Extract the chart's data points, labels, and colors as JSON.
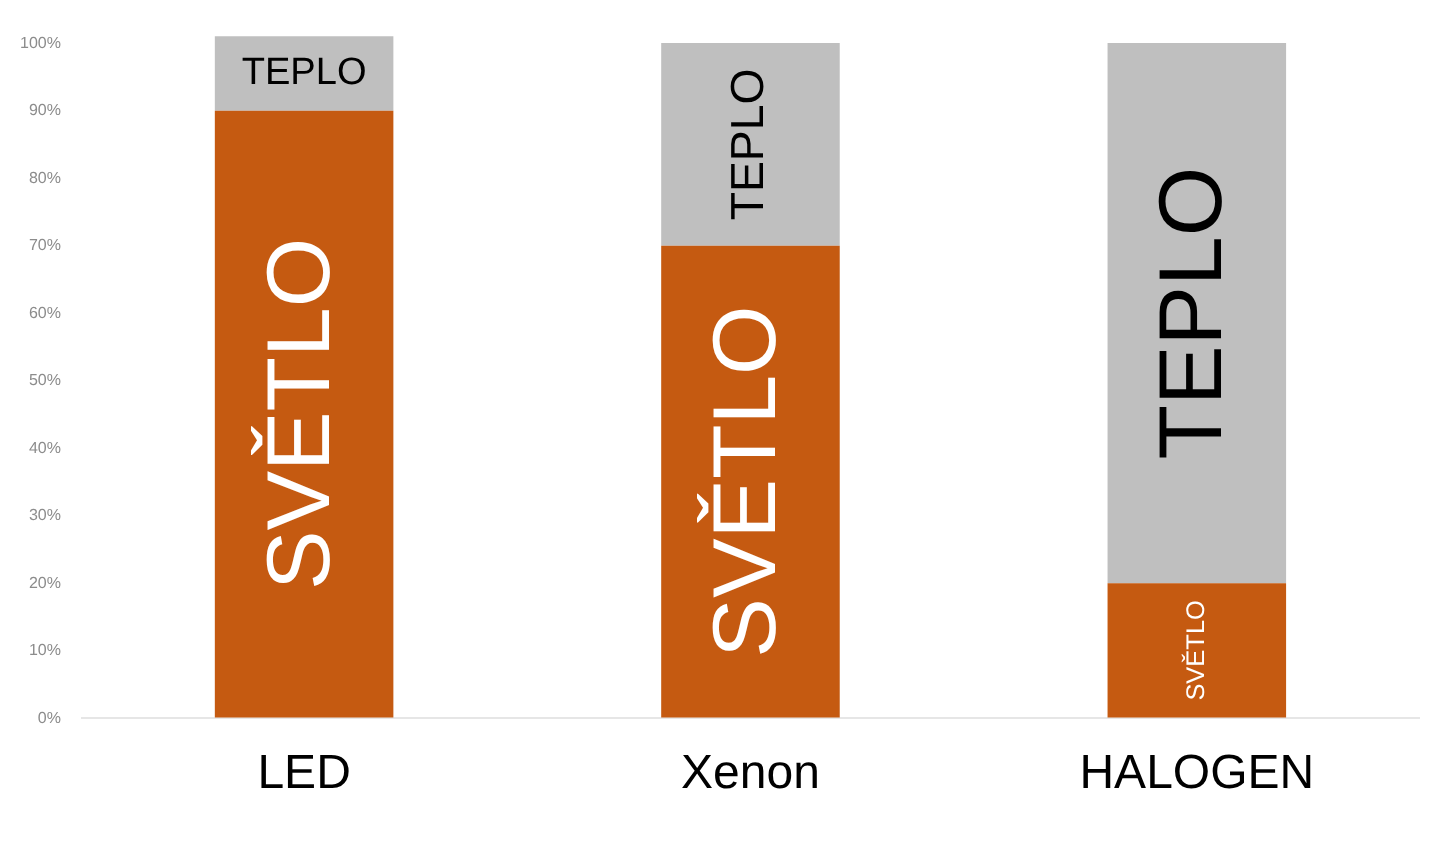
{
  "chart_data": {
    "type": "bar",
    "stacked": true,
    "categories": [
      "LED",
      "Xenon",
      "HALOGEN"
    ],
    "series": [
      {
        "name": "SVĚTLO",
        "color": "#c55a11",
        "values": [
          90,
          70,
          20
        ]
      },
      {
        "name": "TEPLO",
        "color": "#bfbfbf",
        "values": [
          11,
          30,
          80
        ]
      }
    ],
    "ylim": [
      0,
      102
    ],
    "yticks": [
      {
        "value": 0,
        "label": "0%"
      },
      {
        "value": 10,
        "label": "10%"
      },
      {
        "value": 20,
        "label": "20%"
      },
      {
        "value": 30,
        "label": "30%"
      },
      {
        "value": 40,
        "label": "40%"
      },
      {
        "value": 50,
        "label": "50%"
      },
      {
        "value": 60,
        "label": "60%"
      },
      {
        "value": 70,
        "label": "70%"
      },
      {
        "value": 80,
        "label": "80%"
      },
      {
        "value": 90,
        "label": "90%"
      },
      {
        "value": 100,
        "label": "100%"
      }
    ],
    "grid": false,
    "legend": false
  }
}
